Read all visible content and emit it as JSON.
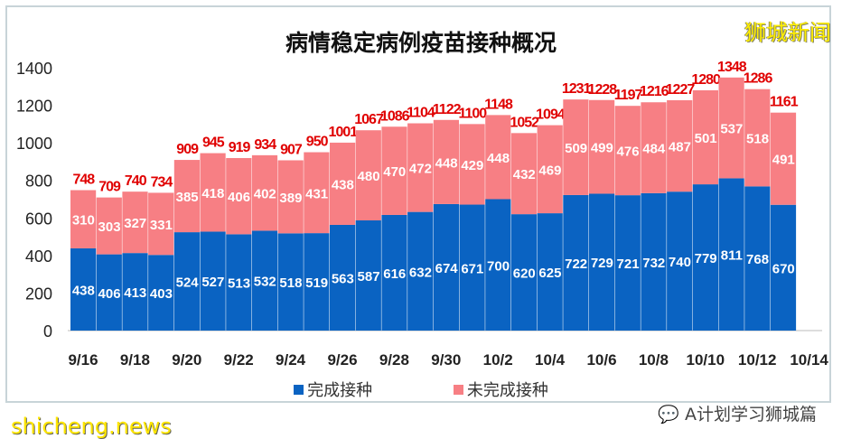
{
  "chart_data": {
    "type": "bar",
    "stacked": true,
    "title": "病情稳定病例疫苗接种概况",
    "categories": [
      "9/16",
      "9/17",
      "9/18",
      "9/19",
      "9/20",
      "9/21",
      "9/22",
      "9/23",
      "9/24",
      "9/25",
      "9/26",
      "9/27",
      "9/28",
      "9/29",
      "9/30",
      "10/1",
      "10/2",
      "10/3",
      "10/4",
      "10/5",
      "10/6",
      "10/7",
      "10/8",
      "10/9",
      "10/10",
      "10/11",
      "10/12",
      "10/13"
    ],
    "tick_labels": [
      "9/16",
      "9/18",
      "9/20",
      "9/22",
      "9/24",
      "9/26",
      "9/28",
      "9/30",
      "10/2",
      "10/4",
      "10/6",
      "10/8",
      "10/10",
      "10/12",
      "10/14"
    ],
    "series": [
      {
        "name": "完成接种",
        "color": "#0a63c2",
        "values": [
          438,
          406,
          413,
          403,
          524,
          527,
          513,
          532,
          518,
          519,
          563,
          587,
          616,
          632,
          674,
          671,
          700,
          620,
          625,
          722,
          729,
          721,
          732,
          740,
          779,
          811,
          768,
          670
        ]
      },
      {
        "name": "未完成接种",
        "color": "#f77f84",
        "values": [
          310,
          303,
          327,
          331,
          385,
          418,
          406,
          402,
          389,
          431,
          438,
          480,
          470,
          472,
          448,
          429,
          448,
          432,
          469,
          509,
          499,
          476,
          484,
          487,
          501,
          537,
          518,
          491
        ]
      }
    ],
    "totals": [
      748,
      709,
      740,
      734,
      909,
      945,
      919,
      934,
      907,
      950,
      1001,
      1067,
      1086,
      1104,
      1122,
      1100,
      1148,
      1052,
      1094,
      1231,
      1228,
      1197,
      1216,
      1227,
      1280,
      1348,
      1286,
      1161
    ],
    "total_label_color": "#e00000",
    "ylim": [
      0,
      1400
    ],
    "yticks": [
      0,
      200,
      400,
      600,
      800,
      1000,
      1200,
      1400
    ],
    "grid": false,
    "legend": "bottom"
  },
  "brand": "狮城新闻",
  "wechat": "A计划学习狮城篇",
  "watermark": "shicheng.news"
}
